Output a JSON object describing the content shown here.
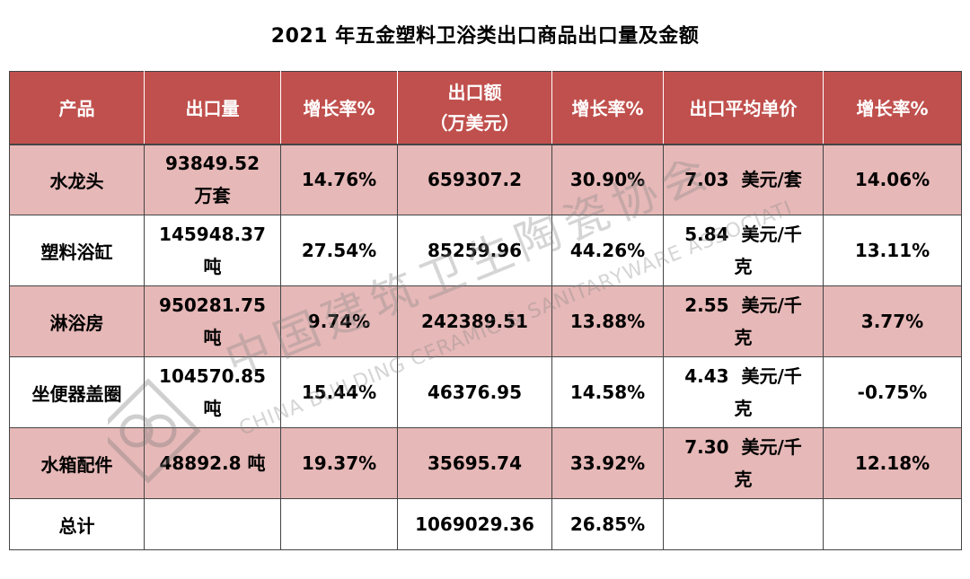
{
  "title": "2021 年五金塑料卫浴类出口商品出口量及金额",
  "headers": {
    "product": "产品",
    "volume": "出口量",
    "volume_growth": "增长率%",
    "amount_line1": "出口额",
    "amount_line2": "（万美元）",
    "amount_growth": "增长率%",
    "unit_price": "出口平均单价",
    "price_growth": "增长率%"
  },
  "rows": [
    {
      "product": "水龙头",
      "volume_1": "93849.52",
      "volume_2": "万套",
      "volume_growth": "14.76%",
      "amount": "659307.2",
      "amount_growth": "30.90%",
      "price_1": "7.03  美元/套",
      "price_2": "",
      "price_growth": "14.06%"
    },
    {
      "product": "塑料浴缸",
      "volume_1": "145948.37",
      "volume_2": "吨",
      "volume_growth": "27.54%",
      "amount": "85259.96",
      "amount_growth": "44.26%",
      "price_1": "5.84  美元/千",
      "price_2": "克",
      "price_growth": "13.11%"
    },
    {
      "product": "淋浴房",
      "volume_1": "950281.75",
      "volume_2": "吨",
      "volume_growth": "9.74%",
      "amount": "242389.51",
      "amount_growth": "13.88%",
      "price_1": "2.55  美元/千",
      "price_2": "克",
      "price_growth": "3.77%"
    },
    {
      "product": "坐便器盖圈",
      "volume_1": "104570.85",
      "volume_2": "吨",
      "volume_growth": "15.44%",
      "amount": "46376.95",
      "amount_growth": "14.58%",
      "price_1": "4.43  美元/千",
      "price_2": "克",
      "price_growth": "-0.75%"
    },
    {
      "product": "水箱配件",
      "volume_1": "48892.8 吨",
      "volume_2": "",
      "volume_growth": "19.37%",
      "amount": "35695.74",
      "amount_growth": "33.92%",
      "price_1": "7.30  美元/千",
      "price_2": "克",
      "price_growth": "12.18%"
    }
  ],
  "total": {
    "label": "总计",
    "volume": "",
    "volume_growth": "",
    "amount": "1069029.36",
    "amount_growth": "26.85%",
    "price": "",
    "price_growth": ""
  },
  "watermark": {
    "cn": "中国建筑卫生陶瓷协会",
    "en": "CHINA BUILDING CERAMIC & SANITARYWARE ASSOCIATION",
    "icon": "association-logo-icon"
  },
  "colors": {
    "header_bg": "#c0504d",
    "shaded_row": "#e6b8b7"
  }
}
